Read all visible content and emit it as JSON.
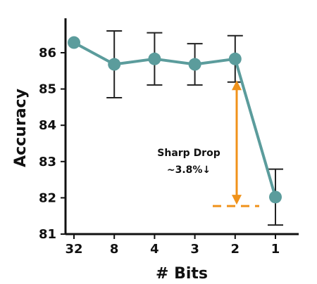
{
  "chart_data": {
    "type": "line",
    "xlabel": "# Bits",
    "ylabel": "Accuracy",
    "categories": [
      "32",
      "8",
      "4",
      "3",
      "2",
      "1"
    ],
    "ylim": [
      81,
      86.75
    ],
    "yticks": [
      81,
      82,
      83,
      84,
      85,
      86
    ],
    "grid": false,
    "series": [
      {
        "values": [
          86.28,
          85.68,
          85.83,
          85.68,
          85.83,
          82.02
        ],
        "error": [
          0,
          0.92,
          0.72,
          0.57,
          0.64,
          0.77
        ]
      }
    ],
    "annotation": {
      "line1": "Sharp Drop",
      "line2": "~3.8%↓",
      "from_value": 85.2,
      "to_value": 81.85
    },
    "colors": {
      "series": "#5b9c9c",
      "errorbar": "#222222",
      "annotation": "#f0921a",
      "axis": "#111111"
    }
  }
}
